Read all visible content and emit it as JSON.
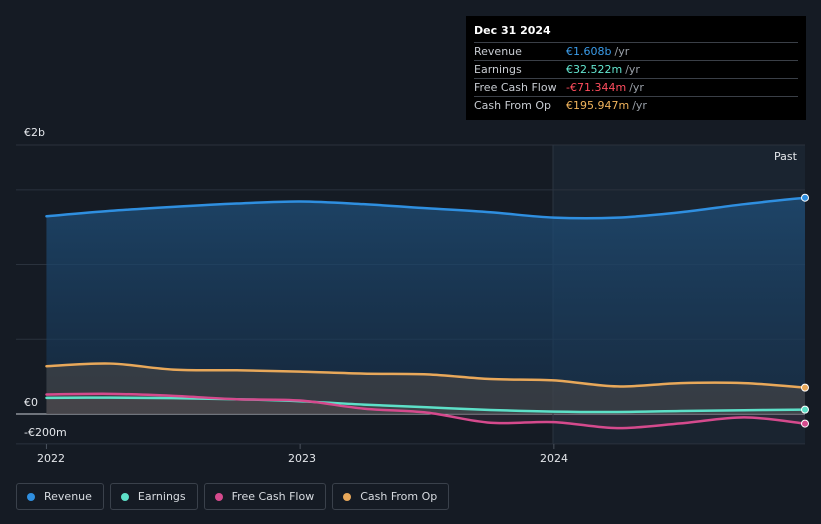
{
  "tooltip": {
    "date": "Dec 31 2024",
    "rows": [
      {
        "label": "Revenue",
        "value": "€1.608b",
        "unit": "/yr",
        "color": "#3a9be8"
      },
      {
        "label": "Earnings",
        "value": "€32.522m",
        "unit": "/yr",
        "color": "#63e6d0"
      },
      {
        "label": "Free Cash Flow",
        "value": "-€71.344m",
        "unit": "/yr",
        "color": "#ff4d5e"
      },
      {
        "label": "Cash From Op",
        "value": "€195.947m",
        "unit": "/yr",
        "color": "#f2b45c"
      }
    ]
  },
  "legend": [
    {
      "label": "Revenue",
      "color": "#2f8fe0"
    },
    {
      "label": "Earnings",
      "color": "#5de0c8"
    },
    {
      "label": "Free Cash Flow",
      "color": "#d54a8d"
    },
    {
      "label": "Cash From Op",
      "color": "#e8a85a"
    }
  ],
  "chart_data": {
    "type": "area",
    "title": "",
    "xlabel": "",
    "ylabel": "",
    "ylim": [
      -200,
      2000
    ],
    "y_tick_labels": [
      "€2b",
      "€0",
      "-€200m"
    ],
    "x_tick_labels": [
      "2022",
      "2023",
      "2024"
    ],
    "xlim": [
      2021.88,
      2024.99
    ],
    "past_label": "Past",
    "grid": true,
    "series": [
      {
        "name": "Revenue",
        "color": "#2f8fe0",
        "x": [
          2022.0,
          2022.25,
          2022.5,
          2022.75,
          2023.0,
          2023.25,
          2023.5,
          2023.75,
          2024.0,
          2024.25,
          2024.5,
          2024.75,
          2024.99
        ],
        "y": [
          1470,
          1510,
          1540,
          1565,
          1580,
          1560,
          1530,
          1500,
          1460,
          1460,
          1500,
          1560,
          1608
        ]
      },
      {
        "name": "Earnings",
        "color": "#5de0c8",
        "x": [
          2022.0,
          2022.25,
          2022.5,
          2022.75,
          2023.0,
          2023.25,
          2023.5,
          2023.75,
          2024.0,
          2024.25,
          2024.5,
          2024.75,
          2024.99
        ],
        "y": [
          120,
          122,
          118,
          110,
          95,
          70,
          50,
          30,
          18,
          15,
          22,
          28,
          32.5
        ]
      },
      {
        "name": "Free Cash Flow",
        "color": "#d54a8d",
        "x": [
          2022.0,
          2022.25,
          2022.5,
          2022.75,
          2023.0,
          2023.25,
          2023.5,
          2023.75,
          2024.0,
          2024.25,
          2024.5,
          2024.75,
          2024.99
        ],
        "y": [
          145,
          150,
          135,
          110,
          100,
          40,
          10,
          -65,
          -60,
          -105,
          -70,
          -25,
          -71.3
        ]
      },
      {
        "name": "Cash From Op",
        "color": "#e8a85a",
        "x": [
          2022.0,
          2022.25,
          2022.5,
          2022.75,
          2023.0,
          2023.25,
          2023.5,
          2023.75,
          2024.0,
          2024.25,
          2024.5,
          2024.75,
          2024.99
        ],
        "y": [
          355,
          375,
          330,
          325,
          315,
          300,
          295,
          260,
          250,
          205,
          230,
          230,
          196
        ]
      }
    ]
  }
}
